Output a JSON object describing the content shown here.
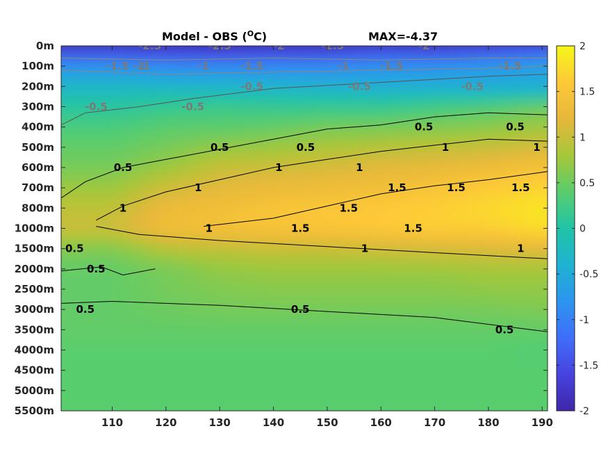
{
  "chart_data": {
    "type": "heatmap",
    "title": "Model - OBS (",
    "title_unit": "C)",
    "title_degree": "O",
    "max_label": "MAX=-4.37",
    "xlabel": "",
    "ylabel": "",
    "x_ticks": [
      110,
      120,
      130,
      140,
      150,
      160,
      170,
      180,
      190
    ],
    "xlim": [
      100.5,
      191
    ],
    "y_ticks": [
      "0m",
      "100m",
      "200m",
      "300m",
      "400m",
      "500m",
      "600m",
      "700m",
      "800m",
      "1000m",
      "1500m",
      "2000m",
      "2500m",
      "3000m",
      "3500m",
      "4000m",
      "4500m",
      "5000m",
      "5500m"
    ],
    "colorbar": {
      "ticks": [
        "2",
        "1.5",
        "1",
        "0.5",
        "0",
        "-0.5",
        "-1",
        "-1.5",
        "-2"
      ],
      "range": [
        -2,
        2
      ],
      "colormap": [
        "#3e26a8",
        "#4743e0",
        "#3f6ef9",
        "#2c95ef",
        "#1fb2d2",
        "#20c4a6",
        "#59cd6d",
        "#a6c739",
        "#e6b73a",
        "#fec938",
        "#f5f718"
      ]
    },
    "values": [
      [
        -2.5,
        -2.5,
        -2.6,
        -2.5,
        -2.5,
        -2.4,
        -2.5,
        -2.4,
        -2.3
      ],
      [
        -0.8,
        -0.9,
        -0.9,
        -0.9,
        -0.9,
        -0.8,
        -0.8,
        -0.7,
        -0.6
      ],
      [
        -0.3,
        -0.3,
        -0.35,
        -0.35,
        -0.4,
        -0.45,
        -0.45,
        -0.5,
        -0.5
      ],
      [
        0.05,
        0.15,
        0.2,
        0.15,
        0.15,
        0.15,
        0.25,
        0.35,
        0.5
      ],
      [
        0.3,
        0.4,
        0.4,
        0.45,
        0.55,
        0.55,
        0.6,
        0.65,
        0.75
      ],
      [
        0.45,
        0.55,
        0.7,
        0.75,
        0.85,
        0.9,
        0.95,
        1.0,
        1.1
      ],
      [
        0.55,
        0.75,
        1.0,
        1.05,
        1.1,
        1.2,
        1.25,
        1.35,
        1.45
      ],
      [
        0.75,
        1.05,
        1.2,
        1.3,
        1.35,
        1.4,
        1.5,
        1.6,
        1.7
      ],
      [
        0.95,
        1.3,
        1.4,
        1.5,
        1.55,
        1.6,
        1.65,
        1.75,
        1.85
      ],
      [
        1.05,
        1.4,
        1.45,
        1.5,
        1.55,
        1.6,
        1.65,
        1.65,
        1.8
      ],
      [
        0.6,
        0.9,
        0.95,
        1.0,
        1.0,
        1.05,
        1.1,
        1.15,
        1.2
      ],
      [
        0.45,
        0.55,
        0.7,
        0.75,
        0.75,
        0.75,
        0.75,
        0.8,
        0.8
      ],
      [
        0.45,
        0.55,
        0.6,
        0.65,
        0.65,
        0.65,
        0.65,
        0.7,
        0.7
      ],
      [
        0.45,
        0.5,
        0.55,
        0.55,
        0.55,
        0.55,
        0.55,
        0.55,
        0.6
      ],
      [
        0.45,
        0.45,
        0.45,
        0.45,
        0.45,
        0.45,
        0.45,
        0.45,
        0.45
      ],
      [
        0.4,
        0.4,
        0.4,
        0.4,
        0.4,
        0.4,
        0.4,
        0.4,
        0.35
      ],
      [
        0.4,
        0.4,
        0.4,
        0.4,
        0.4,
        0.4,
        0.4,
        0.4,
        0.4
      ],
      [
        0.4,
        0.4,
        0.4,
        0.4,
        0.4,
        0.4,
        0.4,
        0.4,
        0.4
      ],
      [
        0.4,
        0.4,
        0.4,
        0.4,
        0.4,
        0.4,
        0.4,
        0.4,
        0.4
      ]
    ],
    "contour_labels": [
      {
        "text": "-2.5",
        "x": 117,
        "depth": "0m",
        "color": "gray"
      },
      {
        "text": "-1.5",
        "x": 111,
        "depth": "100m",
        "color": "gray"
      },
      {
        "text": "-2",
        "x": 115,
        "depth": "100m",
        "color": "gray"
      },
      {
        "text": "-1",
        "x": 116,
        "depth": "100m",
        "color": "gray"
      },
      {
        "text": "-1",
        "x": 127,
        "depth": "100m",
        "color": "gray"
      },
      {
        "text": "-2.5",
        "x": 130,
        "depth": "0m",
        "color": "gray"
      },
      {
        "text": "-1.5",
        "x": 136,
        "depth": "100m",
        "color": "gray"
      },
      {
        "text": "-2",
        "x": 141,
        "depth": "0m",
        "color": "gray"
      },
      {
        "text": "-2.5",
        "x": 151,
        "depth": "0m",
        "color": "gray"
      },
      {
        "text": "-1",
        "x": 153,
        "depth": "100m",
        "color": "gray"
      },
      {
        "text": "-1.5",
        "x": 162,
        "depth": "100m",
        "color": "gray"
      },
      {
        "text": "-2",
        "x": 168,
        "depth": "0m",
        "color": "gray"
      },
      {
        "text": "-1.5",
        "x": 184,
        "depth": "100m",
        "color": "gray"
      },
      {
        "text": "-0.5",
        "x": 136,
        "depth": "200m",
        "color": "gray"
      },
      {
        "text": "-0.5",
        "x": 156,
        "depth": "200m",
        "color": "gray"
      },
      {
        "text": "-0.5",
        "x": 177,
        "depth": "200m",
        "color": "gray"
      },
      {
        "text": "-0.5",
        "x": 125,
        "depth": "300m",
        "color": "gray"
      },
      {
        "text": "-0.5",
        "x": 107,
        "depth": "300m",
        "color": "gray"
      },
      {
        "text": "0.5",
        "x": 168,
        "depth": "400m",
        "color": "black"
      },
      {
        "text": "0.5",
        "x": 185,
        "depth": "400m",
        "color": "black"
      },
      {
        "text": "0.5",
        "x": 146,
        "depth": "500m",
        "color": "black"
      },
      {
        "text": "0.5",
        "x": 130,
        "depth": "500m",
        "color": "black"
      },
      {
        "text": "0.5",
        "x": 112,
        "depth": "600m",
        "color": "black"
      },
      {
        "text": "1",
        "x": 172,
        "depth": "500m",
        "color": "black"
      },
      {
        "text": "1",
        "x": 189,
        "depth": "500m",
        "color": "black"
      },
      {
        "text": "1",
        "x": 156,
        "depth": "600m",
        "color": "black"
      },
      {
        "text": "1",
        "x": 141,
        "depth": "600m",
        "color": "black"
      },
      {
        "text": "1",
        "x": 126,
        "depth": "700m",
        "color": "black"
      },
      {
        "text": "1",
        "x": 112,
        "depth": "800m",
        "color": "black"
      },
      {
        "text": "1.5",
        "x": 186,
        "depth": "700m",
        "color": "black"
      },
      {
        "text": "1.5",
        "x": 174,
        "depth": "700m",
        "color": "black"
      },
      {
        "text": "1.5",
        "x": 163,
        "depth": "700m",
        "color": "black"
      },
      {
        "text": "1.5",
        "x": 154,
        "depth": "800m",
        "color": "black"
      },
      {
        "text": "1.5",
        "x": 145,
        "depth": "1000m",
        "color": "black"
      },
      {
        "text": "1.5",
        "x": 166,
        "depth": "1000m",
        "color": "black"
      },
      {
        "text": "1",
        "x": 128,
        "depth": "1000m",
        "color": "black"
      },
      {
        "text": "1",
        "x": 157,
        "depth": "1500m",
        "color": "black"
      },
      {
        "text": "1",
        "x": 186,
        "depth": "1500m",
        "color": "black"
      },
      {
        "text": "0.5",
        "x": 103,
        "depth": "1500m",
        "color": "black"
      },
      {
        "text": "0.5",
        "x": 107,
        "depth": "2000m",
        "color": "black"
      },
      {
        "text": "0.5",
        "x": 105,
        "depth": "3000m",
        "color": "black"
      },
      {
        "text": "0.5",
        "x": 145,
        "depth": "3000m",
        "color": "black"
      },
      {
        "text": "0.5",
        "x": 183,
        "depth": "3500m",
        "color": "black"
      }
    ]
  }
}
